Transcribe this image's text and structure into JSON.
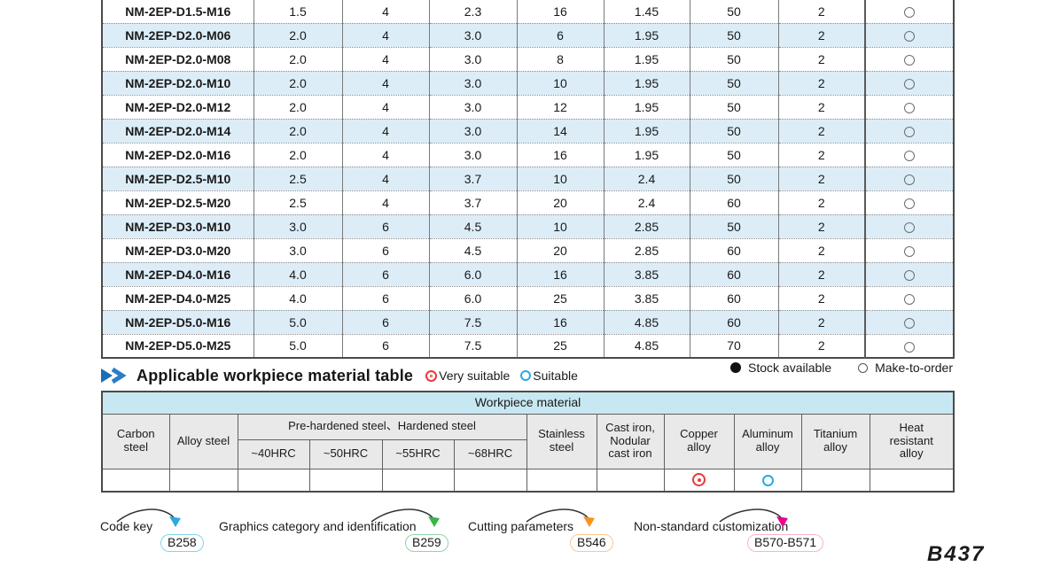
{
  "colors": {
    "row_alt": "#dcedf8",
    "caption_band": "#c7e8f2",
    "header_bg": "#e9e9e9",
    "very_suitable": "#e8383d",
    "suitable": "#29abe2",
    "arrow_cyan": "#29abe2",
    "arrow_green": "#39b54a",
    "arrow_orange": "#f7941d",
    "arrow_magenta": "#ec008c",
    "badge_b258": "#7fd6ec",
    "badge_b259": "#8fd6a0",
    "badge_b546": "#fbc98c",
    "badge_b570": "#f9b3d0"
  },
  "spec_table": {
    "availability_symbol": "make-to-order",
    "rows": [
      {
        "model": "NM-2EP-D1.5-M16",
        "values": [
          "1.5",
          "4",
          "2.3",
          "16",
          "1.45",
          "50",
          "2"
        ],
        "availability": "make-to-order"
      },
      {
        "model": "NM-2EP-D2.0-M06",
        "values": [
          "2.0",
          "4",
          "3.0",
          "6",
          "1.95",
          "50",
          "2"
        ],
        "availability": "make-to-order"
      },
      {
        "model": "NM-2EP-D2.0-M08",
        "values": [
          "2.0",
          "4",
          "3.0",
          "8",
          "1.95",
          "50",
          "2"
        ],
        "availability": "make-to-order"
      },
      {
        "model": "NM-2EP-D2.0-M10",
        "values": [
          "2.0",
          "4",
          "3.0",
          "10",
          "1.95",
          "50",
          "2"
        ],
        "availability": "make-to-order"
      },
      {
        "model": "NM-2EP-D2.0-M12",
        "values": [
          "2.0",
          "4",
          "3.0",
          "12",
          "1.95",
          "50",
          "2"
        ],
        "availability": "make-to-order"
      },
      {
        "model": "NM-2EP-D2.0-M14",
        "values": [
          "2.0",
          "4",
          "3.0",
          "14",
          "1.95",
          "50",
          "2"
        ],
        "availability": "make-to-order"
      },
      {
        "model": "NM-2EP-D2.0-M16",
        "values": [
          "2.0",
          "4",
          "3.0",
          "16",
          "1.95",
          "50",
          "2"
        ],
        "availability": "make-to-order"
      },
      {
        "model": "NM-2EP-D2.5-M10",
        "values": [
          "2.5",
          "4",
          "3.7",
          "10",
          "2.4",
          "50",
          "2"
        ],
        "availability": "make-to-order"
      },
      {
        "model": "NM-2EP-D2.5-M20",
        "values": [
          "2.5",
          "4",
          "3.7",
          "20",
          "2.4",
          "60",
          "2"
        ],
        "availability": "make-to-order"
      },
      {
        "model": "NM-2EP-D3.0-M10",
        "values": [
          "3.0",
          "6",
          "4.5",
          "10",
          "2.85",
          "50",
          "2"
        ],
        "availability": "make-to-order"
      },
      {
        "model": "NM-2EP-D3.0-M20",
        "values": [
          "3.0",
          "6",
          "4.5",
          "20",
          "2.85",
          "60",
          "2"
        ],
        "availability": "make-to-order"
      },
      {
        "model": "NM-2EP-D4.0-M16",
        "values": [
          "4.0",
          "6",
          "6.0",
          "16",
          "3.85",
          "60",
          "2"
        ],
        "availability": "make-to-order"
      },
      {
        "model": "NM-2EP-D4.0-M25",
        "values": [
          "4.0",
          "6",
          "6.0",
          "25",
          "3.85",
          "60",
          "2"
        ],
        "availability": "make-to-order"
      },
      {
        "model": "NM-2EP-D5.0-M16",
        "values": [
          "5.0",
          "6",
          "7.5",
          "16",
          "4.85",
          "60",
          "2"
        ],
        "availability": "make-to-order"
      },
      {
        "model": "NM-2EP-D5.0-M25",
        "values": [
          "5.0",
          "6",
          "7.5",
          "25",
          "4.85",
          "70",
          "2"
        ],
        "availability": "make-to-order"
      }
    ]
  },
  "legend": {
    "stock_available": "Stock available",
    "make_to_order": "Make-to-order"
  },
  "section": {
    "title": "Applicable workpiece material table",
    "very_suitable": "Very suitable",
    "suitable": "Suitable"
  },
  "workpiece": {
    "caption": "Workpiece material",
    "headers": {
      "carbon": "Carbon steel",
      "alloy": "Alloy steel",
      "group": "Pre-hardened steel、Hardened steel",
      "subs": [
        "~40HRC",
        "~50HRC",
        "~55HRC",
        "~68HRC"
      ],
      "stainless": "Stainless steel",
      "cast_iron": "Cast iron, Nodular cast iron",
      "copper": "Copper alloy",
      "aluminum": "Aluminum alloy",
      "titanium": "Titanium alloy",
      "heat": "Heat resistant alloy"
    },
    "marks": [
      "",
      "",
      "",
      "",
      "",
      "",
      "",
      "",
      "very_suitable",
      "suitable",
      "",
      ""
    ]
  },
  "footer": {
    "items": [
      {
        "label": "Code key",
        "badge": "B258"
      },
      {
        "label": "Graphics category and identification",
        "badge": "B259"
      },
      {
        "label": "Cutting parameters",
        "badge": "B546"
      },
      {
        "label": "Non-standard customization",
        "badge": "B570-B571"
      }
    ]
  },
  "page": {
    "number": "B437"
  }
}
